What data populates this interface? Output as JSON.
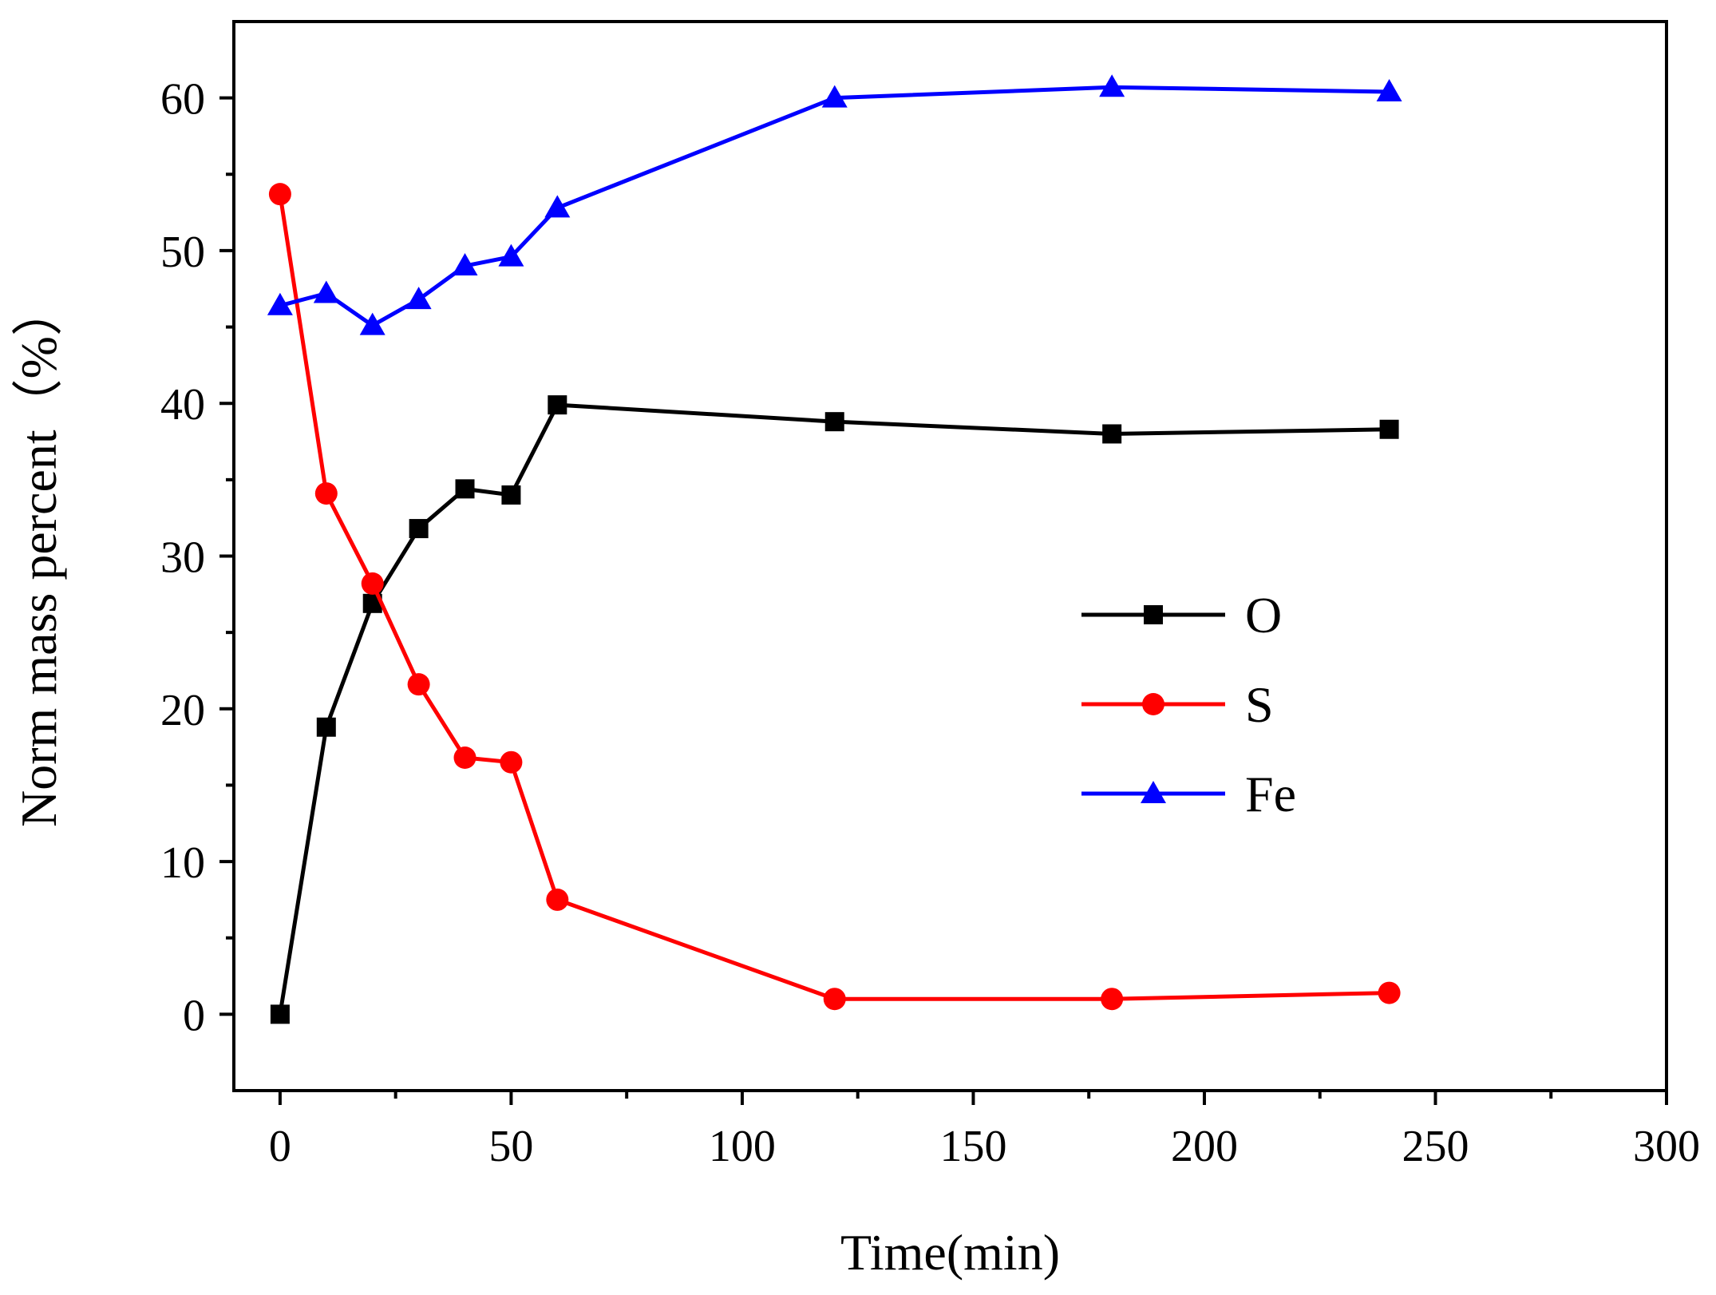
{
  "chart_data": {
    "type": "line",
    "xlabel": "Time(min)",
    "ylabel": "Norm mass percent（%）",
    "xlim": [
      -10,
      300
    ],
    "ylim": [
      -5,
      65
    ],
    "x_ticks": [
      0,
      50,
      100,
      150,
      200,
      250,
      300
    ],
    "y_ticks": [
      0,
      10,
      20,
      30,
      40,
      50,
      60
    ],
    "x_tick_labels": [
      "0",
      "50",
      "100",
      "150",
      "200",
      "250",
      "300"
    ],
    "y_tick_labels": [
      "0",
      "10",
      "20",
      "30",
      "40",
      "50",
      "60"
    ],
    "x": [
      0,
      10,
      20,
      30,
      40,
      50,
      60,
      120,
      180,
      240
    ],
    "grid": false,
    "legend_position": "center-right",
    "series": [
      {
        "name": "O",
        "marker": "square",
        "color": "#000000",
        "values": [
          0,
          18.8,
          26.9,
          31.8,
          34.4,
          34.0,
          39.9,
          38.8,
          38.0,
          38.3
        ]
      },
      {
        "name": "S",
        "marker": "circle",
        "color": "#ff0000",
        "values": [
          53.7,
          34.1,
          28.2,
          21.6,
          16.8,
          16.5,
          7.5,
          1.0,
          1.0,
          1.4
        ]
      },
      {
        "name": "Fe",
        "marker": "triangle",
        "color": "#0000ff",
        "values": [
          46.4,
          47.2,
          45.1,
          46.8,
          49.0,
          49.6,
          52.8,
          60.0,
          60.7,
          60.4
        ]
      }
    ]
  }
}
